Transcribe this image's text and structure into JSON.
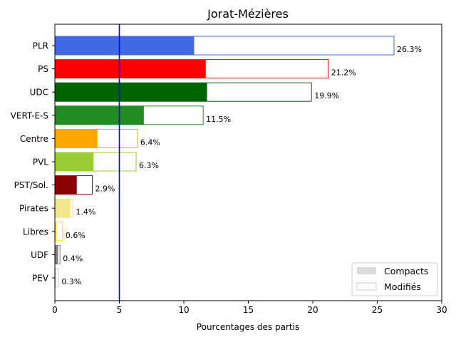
{
  "chart_data": {
    "type": "bar",
    "orientation": "horizontal",
    "title": "Jorat-Mézières",
    "xlabel": "Pourcentages des partis",
    "xlim": [
      0,
      30
    ],
    "xticks": [
      0,
      5,
      10,
      15,
      20,
      25,
      30
    ],
    "threshold_line": {
      "x": 5,
      "color": "#0000ff"
    },
    "categories": [
      "PLR",
      "PS",
      "UDC",
      "VERT-E-S",
      "Centre",
      "PVL",
      "PST/Sol.",
      "Pirates",
      "Libres",
      "UDF",
      "PEV"
    ],
    "colors": [
      "#4169e1",
      "#ff0000",
      "#006400",
      "#228b22",
      "#ffa500",
      "#9acd32",
      "#8b0000",
      "#f0e68c",
      "#ffd700",
      "#808080",
      "#d3d3d3"
    ],
    "series": [
      {
        "name": "Compacts",
        "values": [
          10.8,
          11.7,
          11.8,
          6.9,
          3.3,
          3.0,
          1.7,
          1.2,
          0.1,
          0.25,
          0.1
        ]
      },
      {
        "name": "Modifiés",
        "values": [
          26.3,
          21.2,
          19.9,
          11.5,
          6.4,
          6.3,
          2.9,
          1.4,
          0.6,
          0.4,
          0.3
        ]
      }
    ],
    "value_labels": [
      "26.3%",
      "21.2%",
      "19.9%",
      "11.5%",
      "6.4%",
      "6.3%",
      "2.9%",
      "1.4%",
      "0.6%",
      "0.4%",
      "0.3%"
    ],
    "legend": {
      "position": "lower-right",
      "entries": [
        {
          "label": "Compacts",
          "swatch": "#dcdcdc"
        },
        {
          "label": "Modifiés",
          "swatch": "#ffffff"
        }
      ]
    },
    "grid": false
  }
}
